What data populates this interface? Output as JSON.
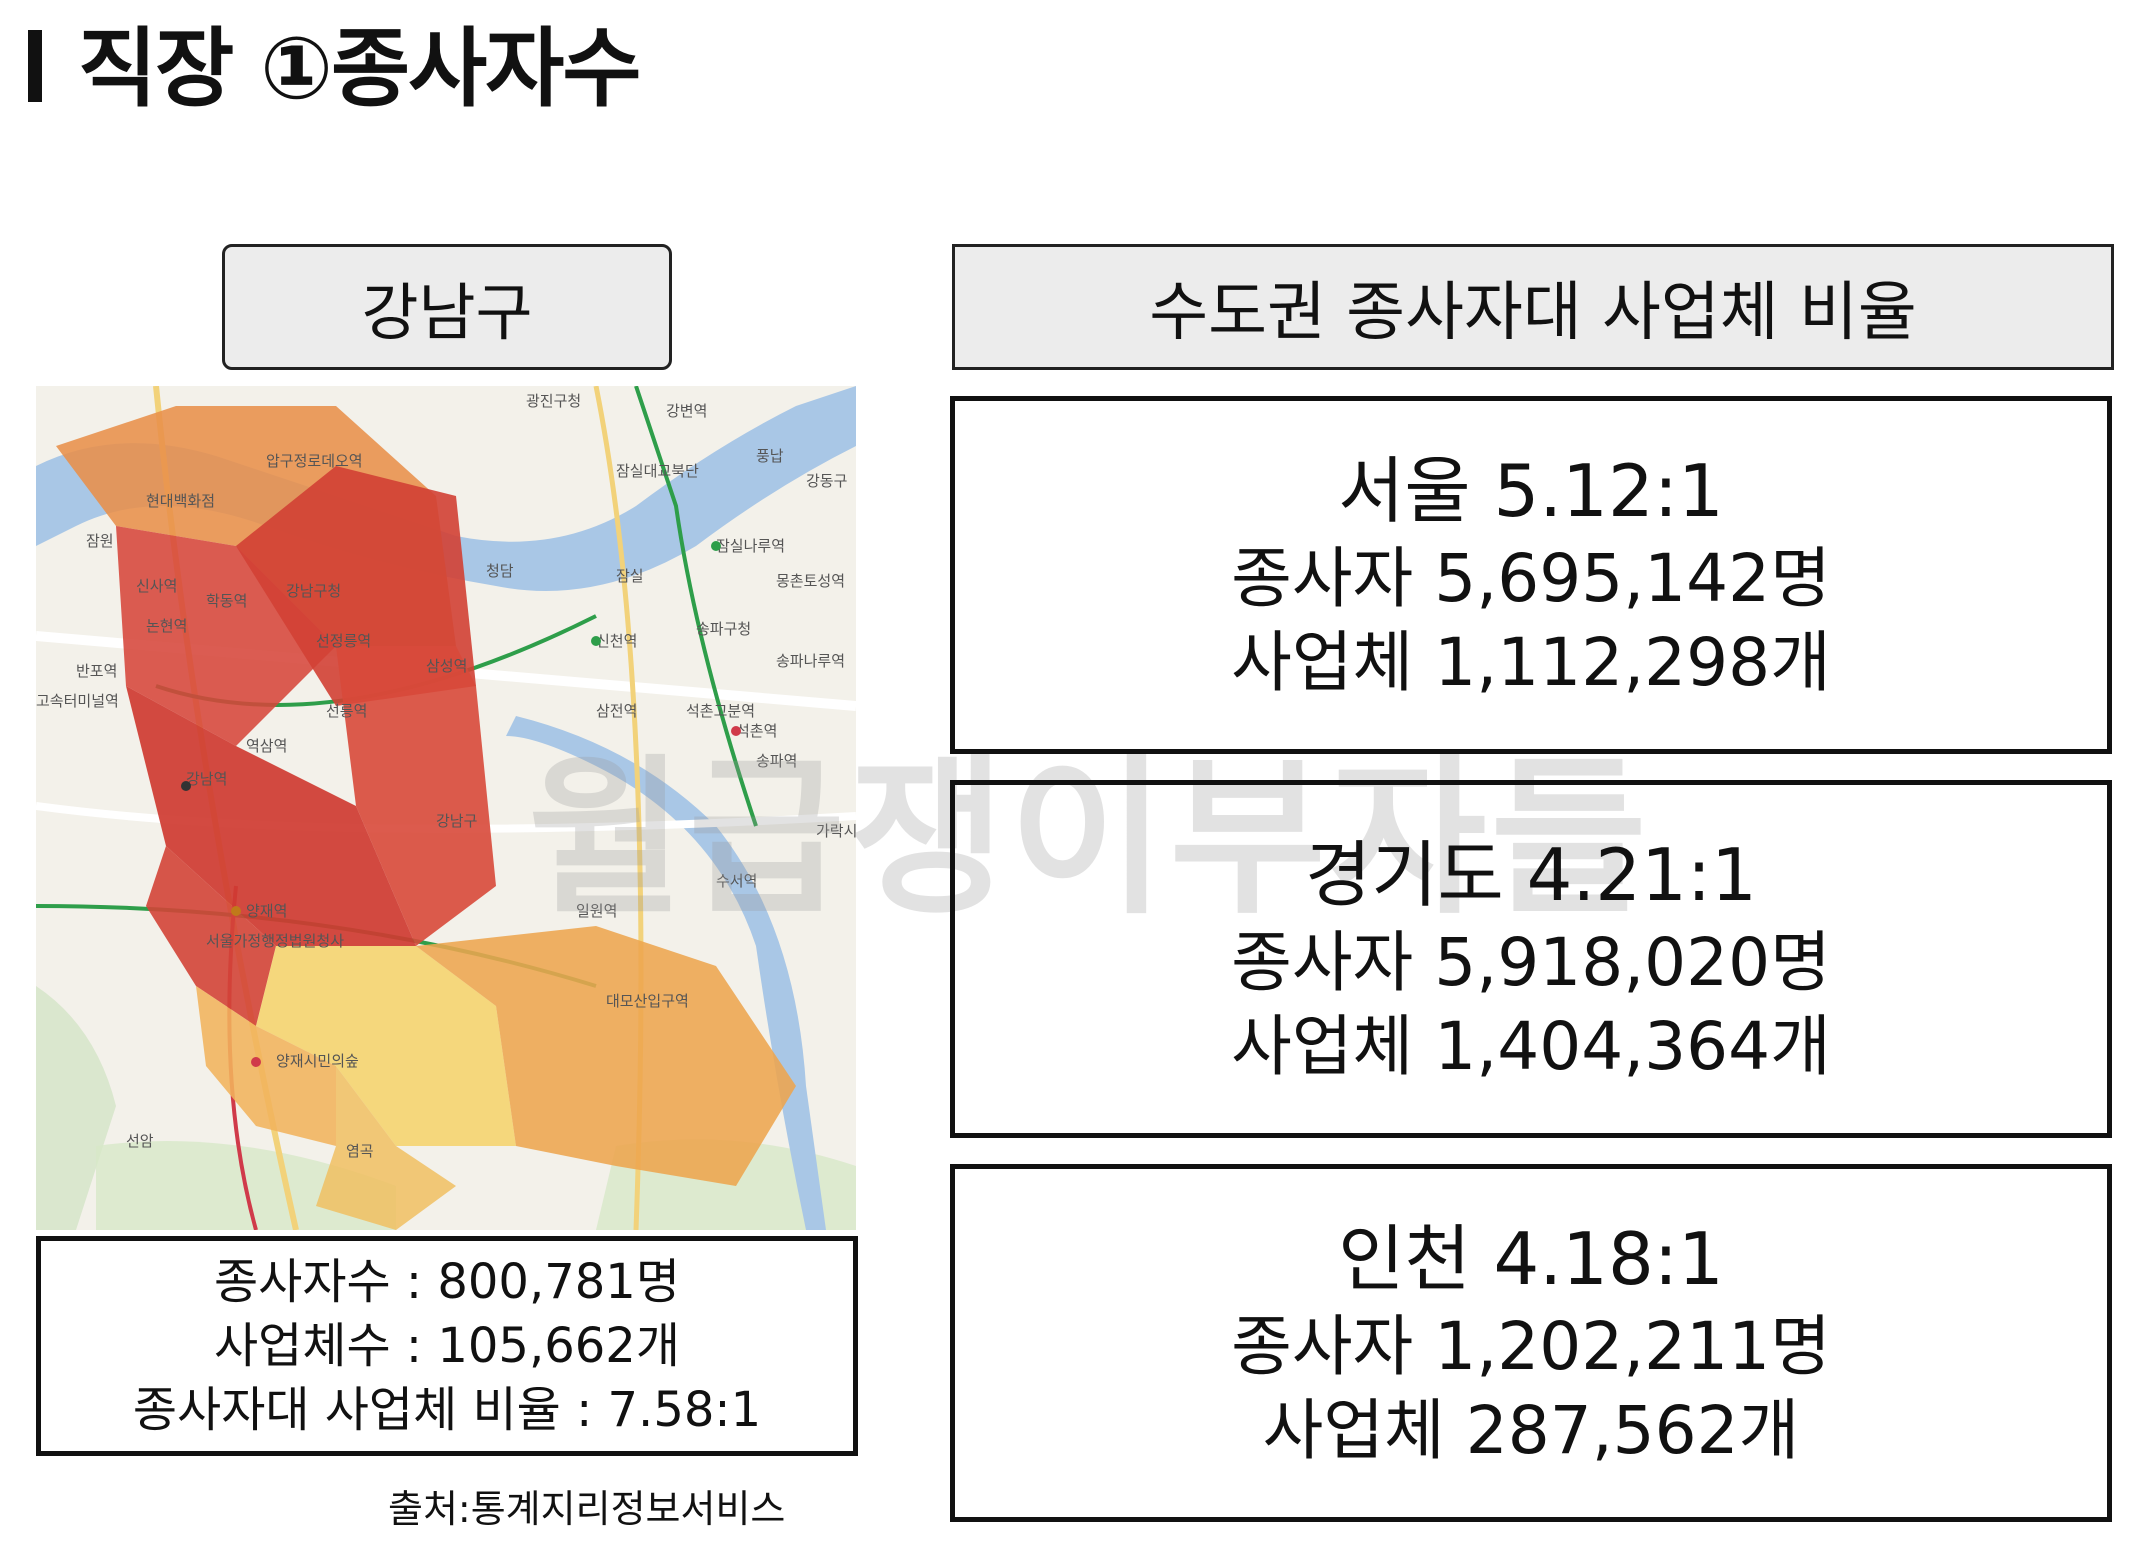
{
  "header": {
    "title": "직장 ①종사자수"
  },
  "left": {
    "label": "강남구",
    "map_labels": [
      "압구정로데오역",
      "신사역",
      "논현역",
      "학동역",
      "강남구청",
      "청담",
      "잠실",
      "신천역",
      "삼전역",
      "선정릉역",
      "삼성역",
      "선릉역",
      "역삼역",
      "강남역",
      "양재역",
      "양재시민의숲",
      "선암",
      "염곡",
      "반포역",
      "고속터미널역",
      "잠원",
      "현대백화점",
      "잠실대교북단",
      "잠실나루역",
      "송파구청",
      "석촌역",
      "송파역",
      "가락시",
      "수서역",
      "일원역",
      "강남구",
      "풍납",
      "강동구",
      "서울가정행정법원청사",
      "광진구청",
      "강변역",
      "몽촌토성역",
      "송파나루역",
      "석촌고분역",
      "대모산입구역"
    ],
    "stats": {
      "employees": "종사자수 : 800,781명",
      "businesses": "사업체수 : 105,662개",
      "ratio": "종사자대 사업체 비율 : 7.58:1"
    },
    "source": "출처:통계지리정보서비스"
  },
  "right": {
    "label": "수도권 종사자대 사업체 비율",
    "regions": [
      {
        "head": "서울 5.12:1",
        "employees": "종사자 5,695,142명",
        "businesses": "사업체 1,112,298개"
      },
      {
        "head": "경기도 4.21:1",
        "employees": "종사자 5,918,020명",
        "businesses": "사업체 1,404,364개"
      },
      {
        "head": "인천 4.18:1",
        "employees": "종사자 1,202,211명",
        "businesses": "사업체 287,562개"
      }
    ]
  },
  "watermark": "월급쟁이부자들",
  "colors": {
    "dark_red": "#d33b2f",
    "orange": "#e8934a",
    "light_orange": "#f0b05a",
    "yellow": "#f6d56e",
    "river": "#a9c7e6"
  }
}
